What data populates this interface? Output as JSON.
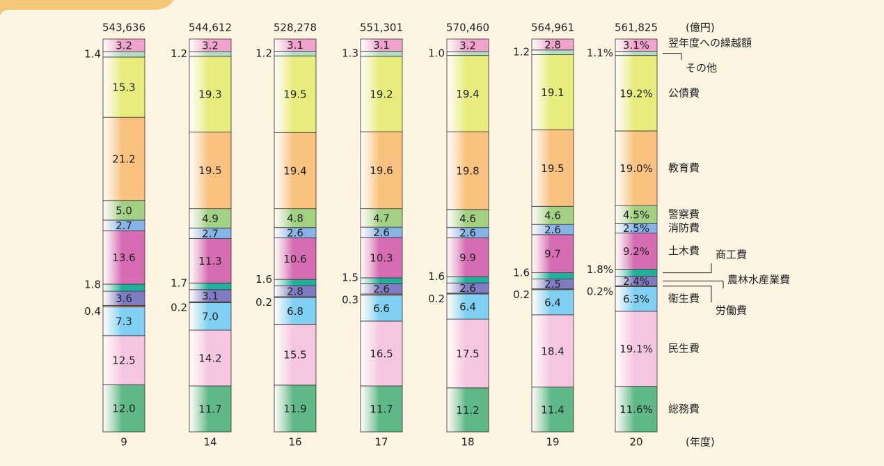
{
  "chart_data": {
    "type": "stacked_bar_100",
    "unit_label": "(億円)",
    "x_unit_label": "(年度)",
    "categories": [
      "9",
      "14",
      "16",
      "17",
      "18",
      "19",
      "20"
    ],
    "total_labels": [
      "543,636",
      "544,612",
      "528,278",
      "551,301",
      "570,460",
      "564,961",
      "561,825"
    ],
    "ylim": [
      0,
      100
    ],
    "series": [
      {
        "name": "総務費",
        "color": "#5fb888",
        "values": [
          12.0,
          11.7,
          11.9,
          11.7,
          11.2,
          11.4,
          11.6
        ],
        "value_labels": [
          "12.0",
          "11.7",
          "11.9",
          "11.7",
          "11.2",
          "11.4",
          "11.6%"
        ]
      },
      {
        "name": "民生費",
        "color": "#f5c6e0",
        "values": [
          12.5,
          14.2,
          15.5,
          16.5,
          17.5,
          18.4,
          19.1
        ],
        "value_labels": [
          "12.5",
          "14.2",
          "15.5",
          "16.5",
          "17.5",
          "18.4",
          "19.1%"
        ]
      },
      {
        "name": "衛生費",
        "color": "#7fd0f2",
        "values": [
          7.3,
          7.0,
          6.8,
          6.6,
          6.4,
          6.4,
          6.3
        ],
        "value_labels": [
          "7.3",
          "7.0",
          "6.8",
          "6.6",
          "6.4",
          "6.4",
          "6.3%"
        ]
      },
      {
        "name": "労働費",
        "color": "#e8743a",
        "values": [
          0.4,
          0.2,
          0.2,
          0.3,
          0.2,
          0.2,
          0.2
        ],
        "value_labels": [
          "0.4",
          "0.2",
          "0.2",
          "0.3",
          "0.2",
          "0.2",
          "0.2%"
        ]
      },
      {
        "name": "農林水産業費",
        "color": "#7f7cc4",
        "values": [
          3.6,
          3.1,
          2.8,
          2.6,
          2.6,
          2.5,
          2.4
        ],
        "value_labels": [
          "3.6",
          "3.1",
          "2.8",
          "2.6",
          "2.6",
          "2.5",
          "2.4%"
        ]
      },
      {
        "name": "商工費",
        "color": "#22b09c",
        "values": [
          1.8,
          1.7,
          1.6,
          1.5,
          1.6,
          1.6,
          1.8
        ],
        "value_labels": [
          "1.8",
          "1.7",
          "1.6",
          "1.5",
          "1.6",
          "1.6",
          "1.8%"
        ]
      },
      {
        "name": "土木費",
        "color": "#d66cb2",
        "values": [
          13.6,
          11.3,
          10.6,
          10.3,
          9.9,
          9.7,
          9.2
        ],
        "value_labels": [
          "13.6",
          "11.3",
          "10.6",
          "10.3",
          "9.9",
          "9.7",
          "9.2%"
        ]
      },
      {
        "name": "消防費",
        "color": "#86b4e6",
        "values": [
          2.7,
          2.7,
          2.6,
          2.6,
          2.6,
          2.6,
          2.5
        ],
        "value_labels": [
          "2.7",
          "2.7",
          "2.6",
          "2.6",
          "2.6",
          "2.6",
          "2.5%"
        ]
      },
      {
        "name": "警察費",
        "color": "#a3d184",
        "values": [
          5.0,
          4.9,
          4.8,
          4.7,
          4.6,
          4.6,
          4.5
        ],
        "value_labels": [
          "5.0",
          "4.9",
          "4.8",
          "4.7",
          "4.6",
          "4.6",
          "4.5%"
        ]
      },
      {
        "name": "教育費",
        "color": "#f9c27f",
        "values": [
          21.2,
          19.5,
          19.4,
          19.6,
          19.8,
          19.5,
          19.0
        ],
        "value_labels": [
          "21.2",
          "19.5",
          "19.4",
          "19.6",
          "19.8",
          "19.5",
          "19.0%"
        ]
      },
      {
        "name": "公債費",
        "color": "#e8ec7c",
        "values": [
          15.3,
          19.3,
          19.5,
          19.2,
          19.4,
          19.1,
          19.2
        ],
        "value_labels": [
          "15.3",
          "19.3",
          "19.5",
          "19.2",
          "19.4",
          "19.1",
          "19.2%"
        ]
      },
      {
        "name": "その他",
        "color": "#b3dcc4",
        "values": [
          1.4,
          1.2,
          1.2,
          1.3,
          1.0,
          1.2,
          1.1
        ],
        "value_labels": [
          "1.4",
          "1.2",
          "1.2",
          "1.3",
          "1.0",
          "1.2",
          "1.1%"
        ]
      },
      {
        "name": "翌年度への繰越額",
        "color": "#f0a3cc",
        "values": [
          3.2,
          3.2,
          3.1,
          3.1,
          3.2,
          2.8,
          3.1
        ],
        "value_labels": [
          "3.2",
          "3.2",
          "3.1",
          "3.1",
          "3.2",
          "2.8",
          "3.1%"
        ]
      }
    ]
  }
}
